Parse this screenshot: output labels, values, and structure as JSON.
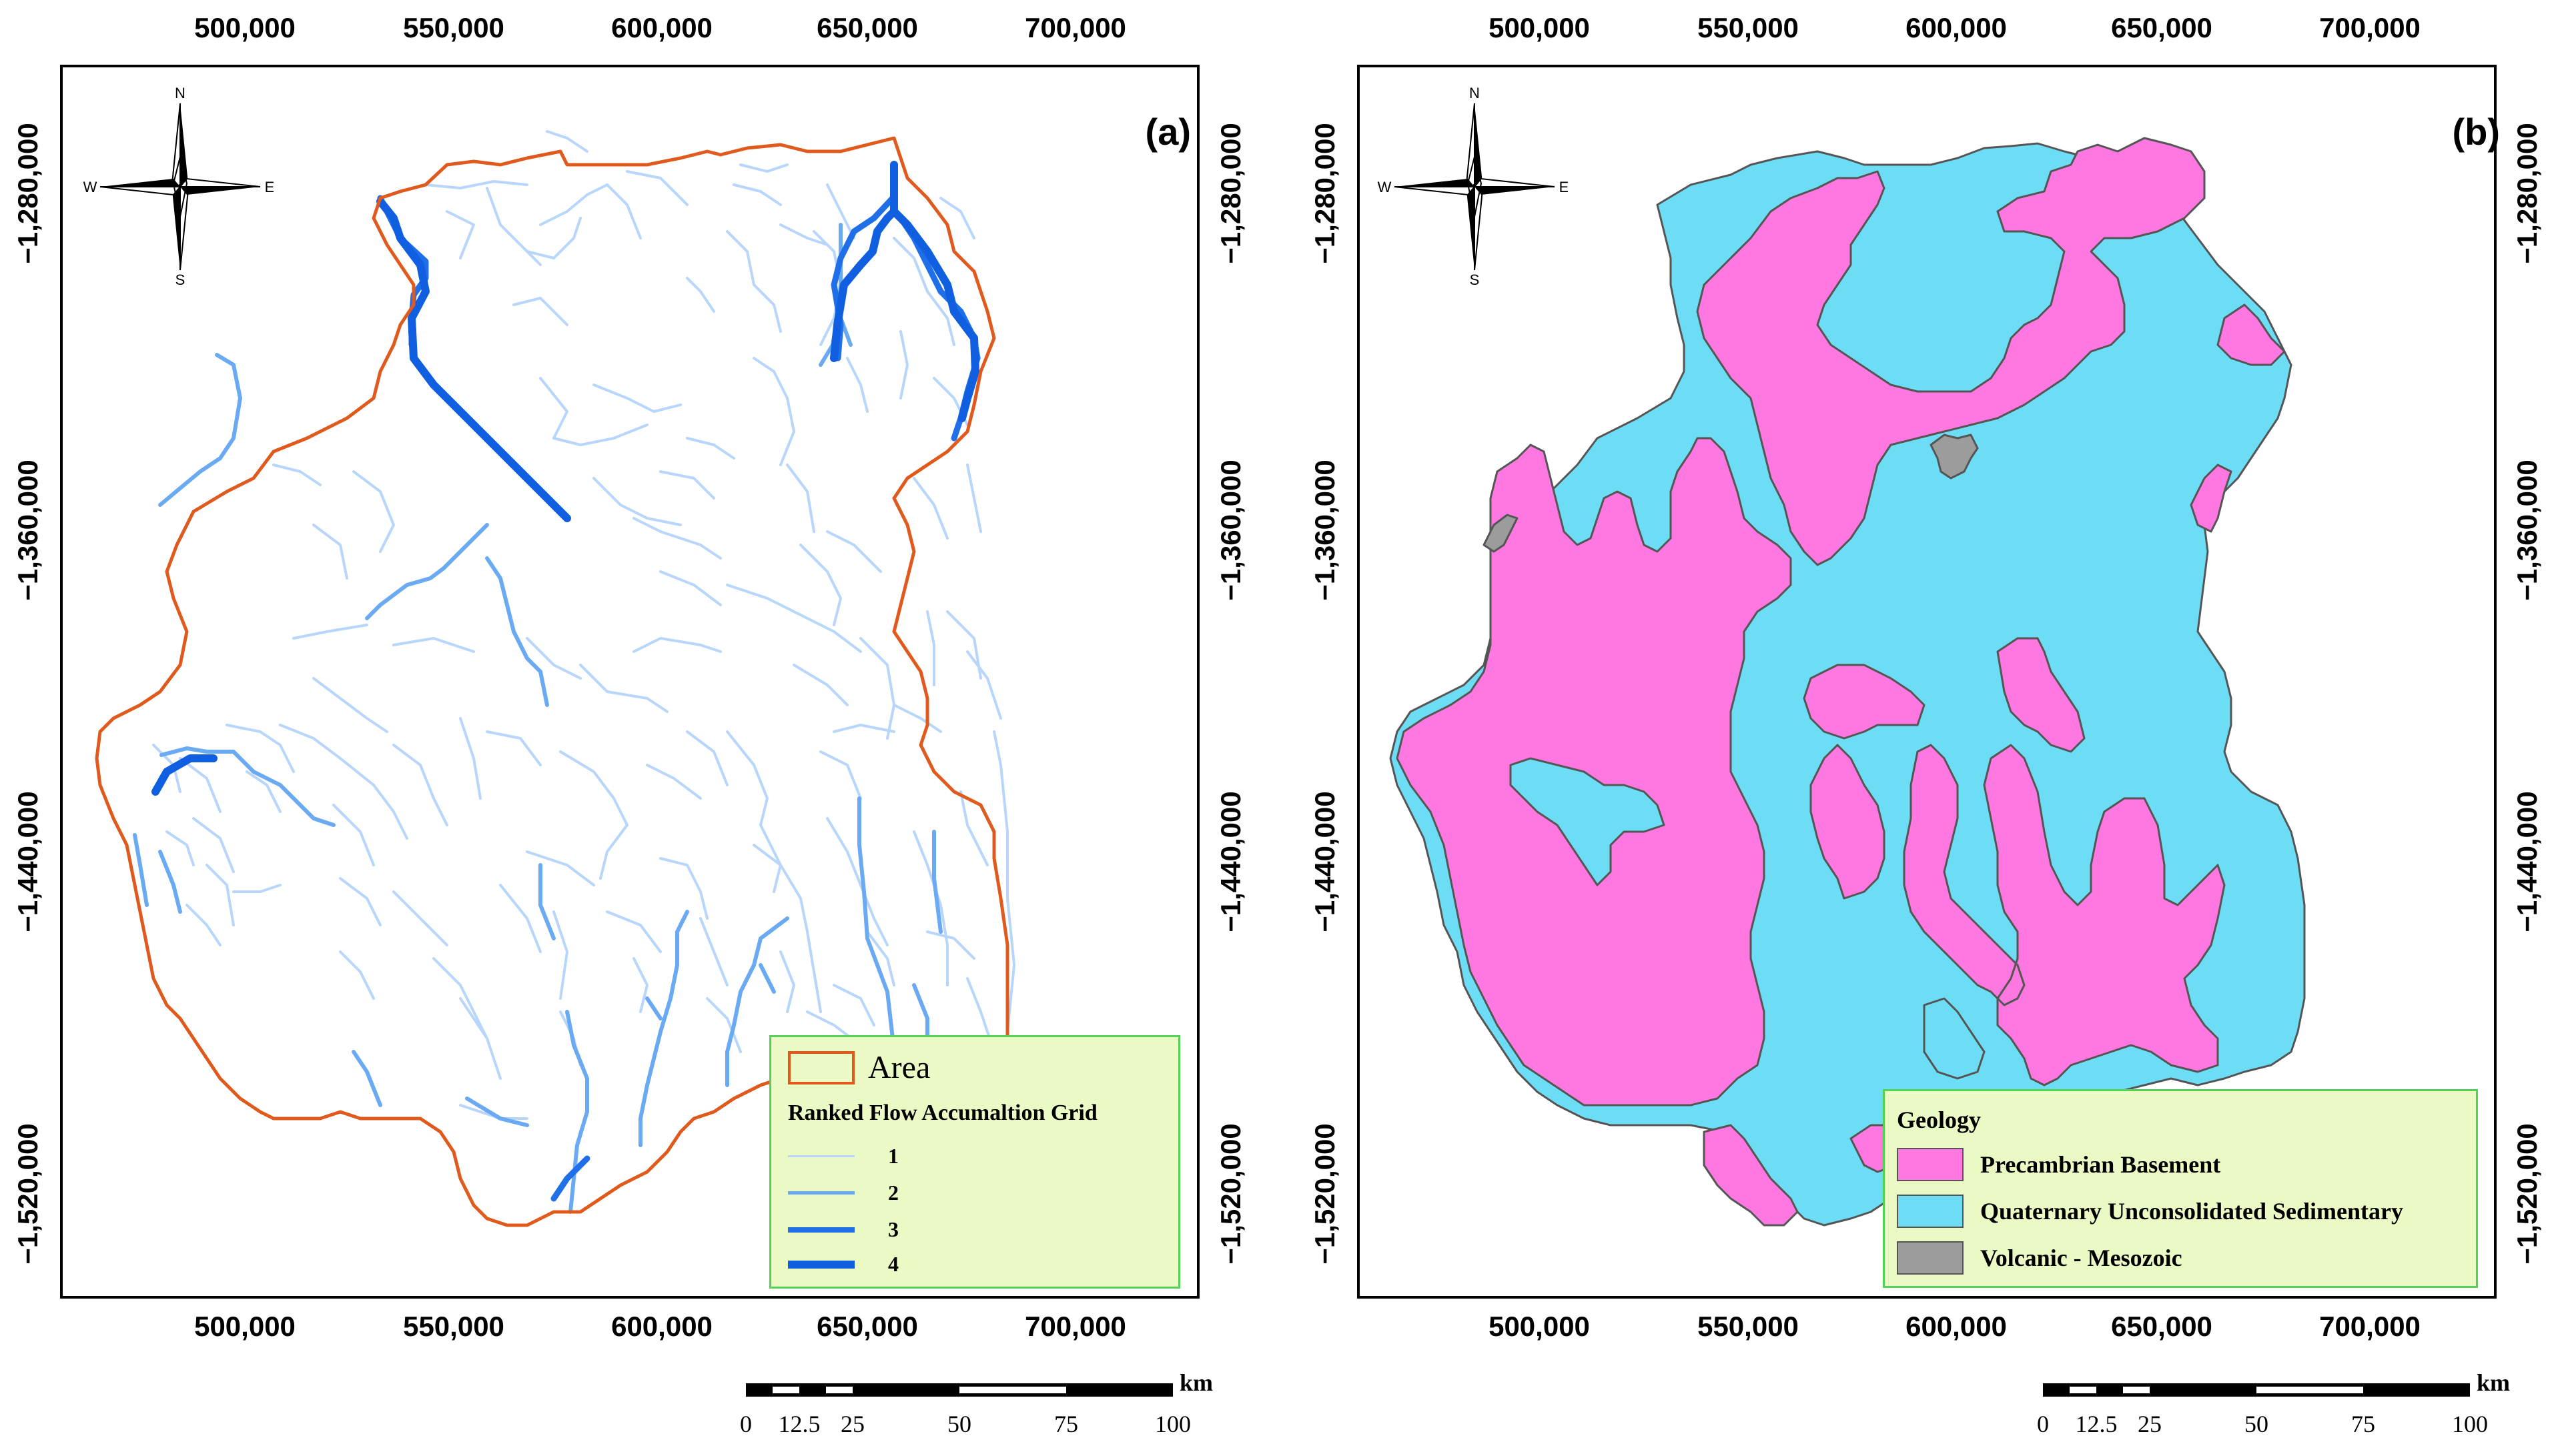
{
  "panels": [
    {
      "letter": "(a)",
      "legend": {
        "area_label": "Area",
        "title": "Ranked Flow Accumaltion Grid",
        "items": [
          "1",
          "2",
          "3",
          "4"
        ]
      }
    },
    {
      "letter": "(b)",
      "legend": {
        "title": "Geology",
        "items": [
          {
            "label": "Precambrian Basement",
            "color": "#ff77e0"
          },
          {
            "label": "Quaternary Unconsolidated Sedimentary",
            "color": "#6ddcf5"
          },
          {
            "label": "Volcanic - Mesozoic",
            "color": "#9c9c9c"
          }
        ]
      }
    }
  ],
  "x_ticks": [
    "500,000",
    "550,000",
    "600,000",
    "650,000",
    "700,000"
  ],
  "y_ticks": [
    "−1,280,000",
    "−1,360,000",
    "−1,440,000",
    "−1,520,000"
  ],
  "compass": {
    "n": "N",
    "s": "S",
    "e": "E",
    "w": "W"
  },
  "scalebar": {
    "labels": [
      "0",
      "12.5",
      "25",
      "50",
      "75",
      "100"
    ],
    "unit": "km"
  },
  "colors": {
    "boundary": "#e05a1e",
    "stream_1": "#b8d6fb",
    "stream_2": "#6aaaf2",
    "stream_3": "#1f6fe8",
    "stream_4": "#0f5fe0",
    "precambrian": "#ff77e0",
    "quaternary": "#6ddcf5",
    "volcanic": "#9c9c9c",
    "legend_bg": "#ebf9c4",
    "legend_border": "#55d155"
  }
}
